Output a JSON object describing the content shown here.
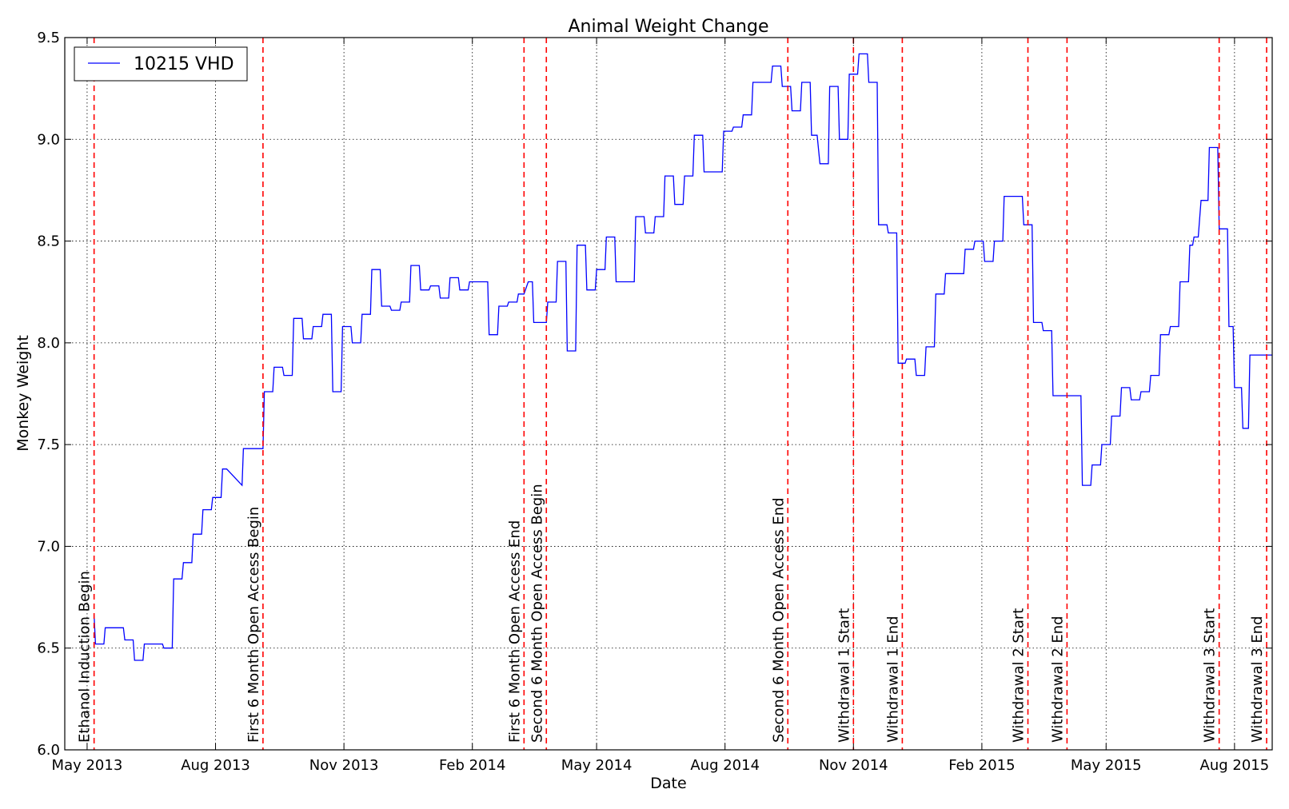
{
  "chart_data": {
    "type": "line",
    "title": "Animal Weight Change",
    "xlabel": "Date",
    "ylabel": "Monkey Weight",
    "xlim": [
      "2013-04-15",
      "2015-08-28"
    ],
    "ylim": [
      6.0,
      9.5
    ],
    "yticks": [
      "6.0",
      "6.5",
      "7.0",
      "7.5",
      "8.0",
      "8.5",
      "9.0",
      "9.5"
    ],
    "xticks": [
      {
        "date": "2013-05-01",
        "label": "May 2013"
      },
      {
        "date": "2013-08-01",
        "label": "Aug 2013"
      },
      {
        "date": "2013-11-01",
        "label": "Nov 2013"
      },
      {
        "date": "2014-02-01",
        "label": "Feb 2014"
      },
      {
        "date": "2014-05-01",
        "label": "May 2014"
      },
      {
        "date": "2014-08-01",
        "label": "Aug 2014"
      },
      {
        "date": "2014-11-01",
        "label": "Nov 2014"
      },
      {
        "date": "2015-02-01",
        "label": "Feb 2015"
      },
      {
        "date": "2015-05-01",
        "label": "May 2015"
      },
      {
        "date": "2015-08-01",
        "label": "Aug 2015"
      }
    ],
    "grid": true,
    "legend_position": "top-left",
    "line_color": "#0000ff",
    "event_color": "#ff0000",
    "series": [
      {
        "name": "10215 VHD",
        "points": [
          [
            "2013-05-06",
            6.66
          ],
          [
            "2013-05-07",
            6.52
          ],
          [
            "2013-05-13",
            6.52
          ],
          [
            "2013-05-14",
            6.6
          ],
          [
            "2013-05-27",
            6.6
          ],
          [
            "2013-05-28",
            6.54
          ],
          [
            "2013-06-03",
            6.54
          ],
          [
            "2013-06-04",
            6.44
          ],
          [
            "2013-06-10",
            6.44
          ],
          [
            "2013-06-11",
            6.52
          ],
          [
            "2013-06-24",
            6.52
          ],
          [
            "2013-06-25",
            6.5
          ],
          [
            "2013-07-01",
            6.5
          ],
          [
            "2013-07-02",
            6.84
          ],
          [
            "2013-07-08",
            6.84
          ],
          [
            "2013-07-09",
            6.92
          ],
          [
            "2013-07-15",
            6.92
          ],
          [
            "2013-07-16",
            7.06
          ],
          [
            "2013-07-22",
            7.06
          ],
          [
            "2013-07-23",
            7.18
          ],
          [
            "2013-07-29",
            7.18
          ],
          [
            "2013-07-30",
            7.24
          ],
          [
            "2013-08-05",
            7.24
          ],
          [
            "2013-08-06",
            7.38
          ],
          [
            "2013-08-09",
            7.38
          ],
          [
            "2013-08-20",
            7.3
          ],
          [
            "2013-08-21",
            7.48
          ],
          [
            "2013-09-04",
            7.48
          ],
          [
            "2013-09-05",
            7.76
          ],
          [
            "2013-09-11",
            7.76
          ],
          [
            "2013-09-12",
            7.88
          ],
          [
            "2013-09-18",
            7.88
          ],
          [
            "2013-09-19",
            7.84
          ],
          [
            "2013-09-25",
            7.84
          ],
          [
            "2013-09-26",
            8.12
          ],
          [
            "2013-10-02",
            8.12
          ],
          [
            "2013-10-03",
            8.02
          ],
          [
            "2013-10-09",
            8.02
          ],
          [
            "2013-10-10",
            8.08
          ],
          [
            "2013-10-16",
            8.08
          ],
          [
            "2013-10-17",
            8.14
          ],
          [
            "2013-10-23",
            8.14
          ],
          [
            "2013-10-24",
            7.76
          ],
          [
            "2013-10-30",
            7.76
          ],
          [
            "2013-10-31",
            8.08
          ],
          [
            "2013-11-06",
            8.08
          ],
          [
            "2013-11-07",
            8.0
          ],
          [
            "2013-11-13",
            8.0
          ],
          [
            "2013-11-14",
            8.14
          ],
          [
            "2013-11-20",
            8.14
          ],
          [
            "2013-11-21",
            8.36
          ],
          [
            "2013-11-27",
            8.36
          ],
          [
            "2013-11-28",
            8.18
          ],
          [
            "2013-12-04",
            8.18
          ],
          [
            "2013-12-05",
            8.16
          ],
          [
            "2013-12-11",
            8.16
          ],
          [
            "2013-12-12",
            8.2
          ],
          [
            "2013-12-18",
            8.2
          ],
          [
            "2013-12-19",
            8.38
          ],
          [
            "2013-12-25",
            8.38
          ],
          [
            "2013-12-26",
            8.26
          ],
          [
            "2014-01-01",
            8.26
          ],
          [
            "2014-01-02",
            8.28
          ],
          [
            "2014-01-08",
            8.28
          ],
          [
            "2014-01-09",
            8.22
          ],
          [
            "2014-01-15",
            8.22
          ],
          [
            "2014-01-16",
            8.32
          ],
          [
            "2014-01-22",
            8.32
          ],
          [
            "2014-01-23",
            8.26
          ],
          [
            "2014-01-29",
            8.26
          ],
          [
            "2014-01-30",
            8.3
          ],
          [
            "2014-02-12",
            8.3
          ],
          [
            "2014-02-13",
            8.04
          ],
          [
            "2014-02-19",
            8.04
          ],
          [
            "2014-02-20",
            8.18
          ],
          [
            "2014-02-26",
            8.18
          ],
          [
            "2014-02-27",
            8.2
          ],
          [
            "2014-03-05",
            8.2
          ],
          [
            "2014-03-06",
            8.24
          ],
          [
            "2014-03-10",
            8.24
          ],
          [
            "2014-03-13",
            8.3
          ],
          [
            "2014-03-16",
            8.3
          ],
          [
            "2014-03-17",
            8.1
          ],
          [
            "2014-03-26",
            8.1
          ],
          [
            "2014-03-27",
            8.2
          ],
          [
            "2014-04-02",
            8.2
          ],
          [
            "2014-04-03",
            8.4
          ],
          [
            "2014-04-09",
            8.4
          ],
          [
            "2014-04-10",
            7.96
          ],
          [
            "2014-04-16",
            7.96
          ],
          [
            "2014-04-17",
            8.48
          ],
          [
            "2014-04-23",
            8.48
          ],
          [
            "2014-04-24",
            8.26
          ],
          [
            "2014-04-30",
            8.26
          ],
          [
            "2014-05-01",
            8.36
          ],
          [
            "2014-05-07",
            8.36
          ],
          [
            "2014-05-08",
            8.52
          ],
          [
            "2014-05-14",
            8.52
          ],
          [
            "2014-05-15",
            8.3
          ],
          [
            "2014-05-28",
            8.3
          ],
          [
            "2014-05-29",
            8.62
          ],
          [
            "2014-06-04",
            8.62
          ],
          [
            "2014-06-05",
            8.54
          ],
          [
            "2014-06-11",
            8.54
          ],
          [
            "2014-06-12",
            8.62
          ],
          [
            "2014-06-18",
            8.62
          ],
          [
            "2014-06-19",
            8.82
          ],
          [
            "2014-06-25",
            8.82
          ],
          [
            "2014-06-26",
            8.68
          ],
          [
            "2014-07-02",
            8.68
          ],
          [
            "2014-07-03",
            8.82
          ],
          [
            "2014-07-09",
            8.82
          ],
          [
            "2014-07-10",
            9.02
          ],
          [
            "2014-07-16",
            9.02
          ],
          [
            "2014-07-17",
            8.84
          ],
          [
            "2014-07-30",
            8.84
          ],
          [
            "2014-07-31",
            9.04
          ],
          [
            "2014-08-06",
            9.04
          ],
          [
            "2014-08-07",
            9.06
          ],
          [
            "2014-08-13",
            9.06
          ],
          [
            "2014-08-14",
            9.12
          ],
          [
            "2014-08-20",
            9.12
          ],
          [
            "2014-08-21",
            9.28
          ],
          [
            "2014-09-03",
            9.28
          ],
          [
            "2014-09-04",
            9.36
          ],
          [
            "2014-09-10",
            9.36
          ],
          [
            "2014-09-11",
            9.26
          ],
          [
            "2014-09-17",
            9.26
          ],
          [
            "2014-09-18",
            9.14
          ],
          [
            "2014-09-24",
            9.14
          ],
          [
            "2014-09-25",
            9.28
          ],
          [
            "2014-10-01",
            9.28
          ],
          [
            "2014-10-02",
            9.02
          ],
          [
            "2014-10-06",
            9.02
          ],
          [
            "2014-10-08",
            8.88
          ],
          [
            "2014-10-14",
            8.88
          ],
          [
            "2014-10-15",
            9.26
          ],
          [
            "2014-10-21",
            9.26
          ],
          [
            "2014-10-22",
            9.0
          ],
          [
            "2014-10-28",
            9.0
          ],
          [
            "2014-10-29",
            9.32
          ],
          [
            "2014-11-04",
            9.32
          ],
          [
            "2014-11-05",
            9.42
          ],
          [
            "2014-11-11",
            9.42
          ],
          [
            "2014-11-12",
            9.28
          ],
          [
            "2014-11-18",
            9.28
          ],
          [
            "2014-11-19",
            8.58
          ],
          [
            "2014-11-25",
            8.58
          ],
          [
            "2014-11-26",
            8.54
          ],
          [
            "2014-12-02",
            8.54
          ],
          [
            "2014-12-03",
            7.9
          ],
          [
            "2014-12-08",
            7.9
          ],
          [
            "2014-12-09",
            7.92
          ],
          [
            "2014-12-15",
            7.92
          ],
          [
            "2014-12-16",
            7.84
          ],
          [
            "2014-12-22",
            7.84
          ],
          [
            "2014-12-23",
            7.98
          ],
          [
            "2014-12-29",
            7.98
          ],
          [
            "2014-12-30",
            8.24
          ],
          [
            "2015-01-05",
            8.24
          ],
          [
            "2015-01-06",
            8.34
          ],
          [
            "2015-01-19",
            8.34
          ],
          [
            "2015-01-20",
            8.46
          ],
          [
            "2015-01-26",
            8.46
          ],
          [
            "2015-01-27",
            8.5
          ],
          [
            "2015-02-02",
            8.5
          ],
          [
            "2015-02-03",
            8.4
          ],
          [
            "2015-02-09",
            8.4
          ],
          [
            "2015-02-10",
            8.5
          ],
          [
            "2015-02-16",
            8.5
          ],
          [
            "2015-02-17",
            8.72
          ],
          [
            "2015-03-02",
            8.72
          ],
          [
            "2015-03-03",
            8.58
          ],
          [
            "2015-03-09",
            8.58
          ],
          [
            "2015-03-10",
            8.1
          ],
          [
            "2015-03-16",
            8.1
          ],
          [
            "2015-03-17",
            8.06
          ],
          [
            "2015-03-23",
            8.06
          ],
          [
            "2015-03-24",
            7.74
          ],
          [
            "2015-04-13",
            7.74
          ],
          [
            "2015-04-14",
            7.3
          ],
          [
            "2015-04-20",
            7.3
          ],
          [
            "2015-04-21",
            7.4
          ],
          [
            "2015-04-27",
            7.4
          ],
          [
            "2015-04-28",
            7.5
          ],
          [
            "2015-05-04",
            7.5
          ],
          [
            "2015-05-05",
            7.64
          ],
          [
            "2015-05-11",
            7.64
          ],
          [
            "2015-05-12",
            7.78
          ],
          [
            "2015-05-18",
            7.78
          ],
          [
            "2015-05-19",
            7.72
          ],
          [
            "2015-05-25",
            7.72
          ],
          [
            "2015-05-26",
            7.76
          ],
          [
            "2015-06-01",
            7.76
          ],
          [
            "2015-06-02",
            7.84
          ],
          [
            "2015-06-08",
            7.84
          ],
          [
            "2015-06-09",
            8.04
          ],
          [
            "2015-06-15",
            8.04
          ],
          [
            "2015-06-16",
            8.08
          ],
          [
            "2015-06-22",
            8.08
          ],
          [
            "2015-06-23",
            8.3
          ],
          [
            "2015-06-29",
            8.3
          ],
          [
            "2015-06-30",
            8.48
          ],
          [
            "2015-07-02",
            8.48
          ],
          [
            "2015-07-03",
            8.52
          ],
          [
            "2015-07-06",
            8.52
          ],
          [
            "2015-07-08",
            8.7
          ],
          [
            "2015-07-13",
            8.7
          ],
          [
            "2015-07-14",
            8.96
          ],
          [
            "2015-07-20",
            8.96
          ],
          [
            "2015-07-21",
            8.56
          ],
          [
            "2015-07-27",
            8.56
          ],
          [
            "2015-07-28",
            8.08
          ],
          [
            "2015-07-31",
            8.08
          ],
          [
            "2015-08-01",
            7.78
          ],
          [
            "2015-08-06",
            7.78
          ],
          [
            "2015-08-07",
            7.58
          ],
          [
            "2015-08-11",
            7.58
          ],
          [
            "2015-08-12",
            7.94
          ],
          [
            "2015-08-28",
            7.94
          ]
        ]
      }
    ],
    "events": [
      {
        "date": "2013-05-06",
        "label": "Ethanol Induction Begin"
      },
      {
        "date": "2013-09-04",
        "label": "First 6 Month Open Access Begin"
      },
      {
        "date": "2014-03-10",
        "label": "First 6 Month Open Access End"
      },
      {
        "date": "2014-03-26",
        "label": "Second 6 Month Open Access Begin"
      },
      {
        "date": "2014-09-15",
        "label": "Second 6 Month Open Access End"
      },
      {
        "date": "2014-11-01",
        "label": "Withdrawal 1 Start"
      },
      {
        "date": "2014-12-06",
        "label": "Withdrawal 1 End"
      },
      {
        "date": "2015-03-06",
        "label": "Withdrawal 2 Start"
      },
      {
        "date": "2015-04-03",
        "label": "Withdrawal 2 End"
      },
      {
        "date": "2015-07-21",
        "label": "Withdrawal 3 Start"
      },
      {
        "date": "2015-08-24",
        "label": "Withdrawal 3 End"
      }
    ]
  }
}
